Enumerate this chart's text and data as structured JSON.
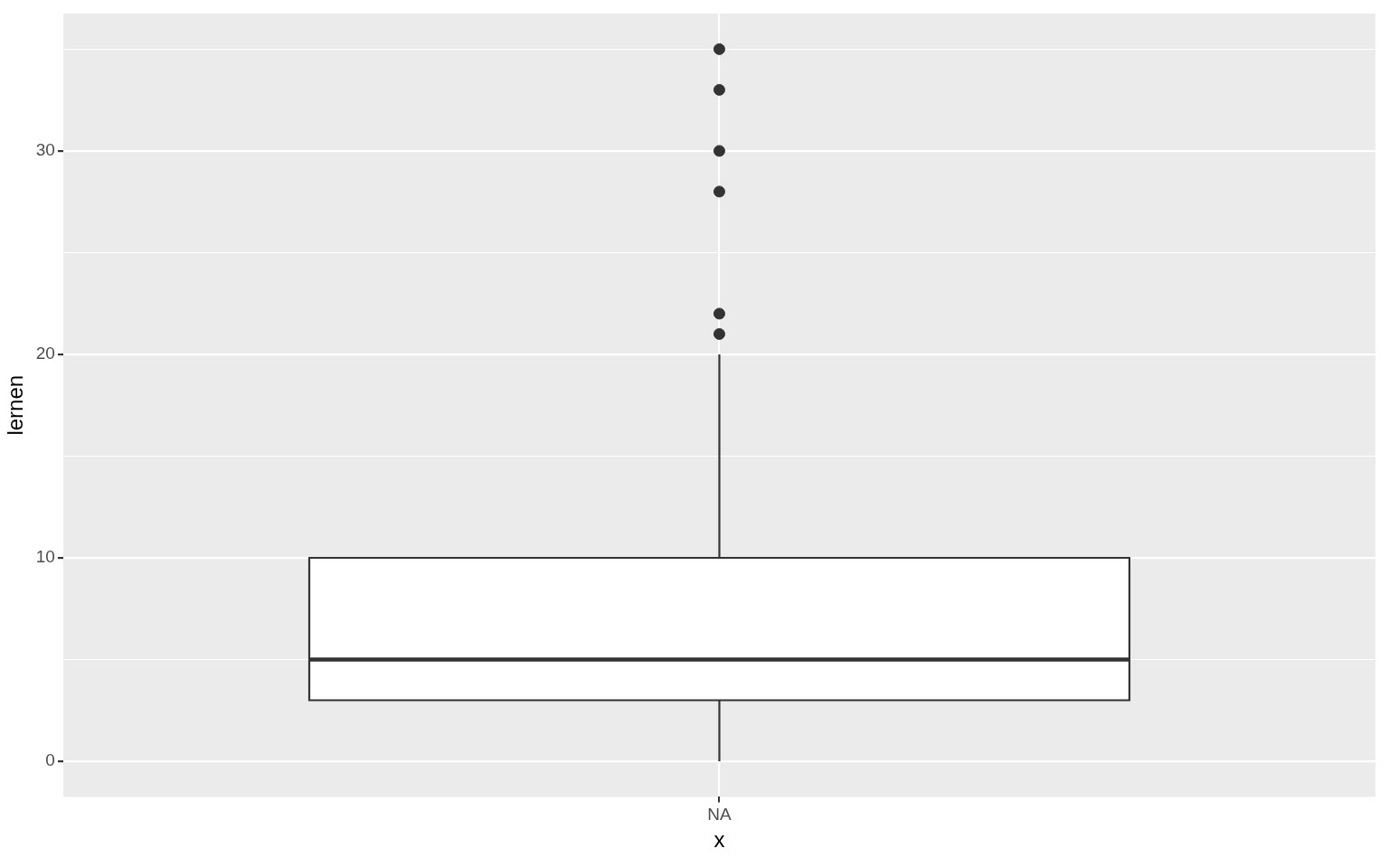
{
  "chart_data": {
    "type": "box",
    "categories": [
      "NA"
    ],
    "xlabel": "x",
    "ylabel": "lernen",
    "boxes": [
      {
        "low": 0,
        "q1": 3,
        "median": 5,
        "q3": 10,
        "high": 20,
        "outliers": [
          21,
          22,
          28,
          30,
          33,
          35
        ]
      }
    ],
    "ylim": [
      -1.75,
      36.75
    ],
    "yticks": [
      0,
      {
        "value": 5,
        "label": null
      },
      10,
      {
        "value": 15,
        "label": null
      },
      20,
      {
        "value": 25,
        "label": null
      },
      30,
      {
        "value": 35,
        "label": null
      }
    ],
    "grid": true
  }
}
